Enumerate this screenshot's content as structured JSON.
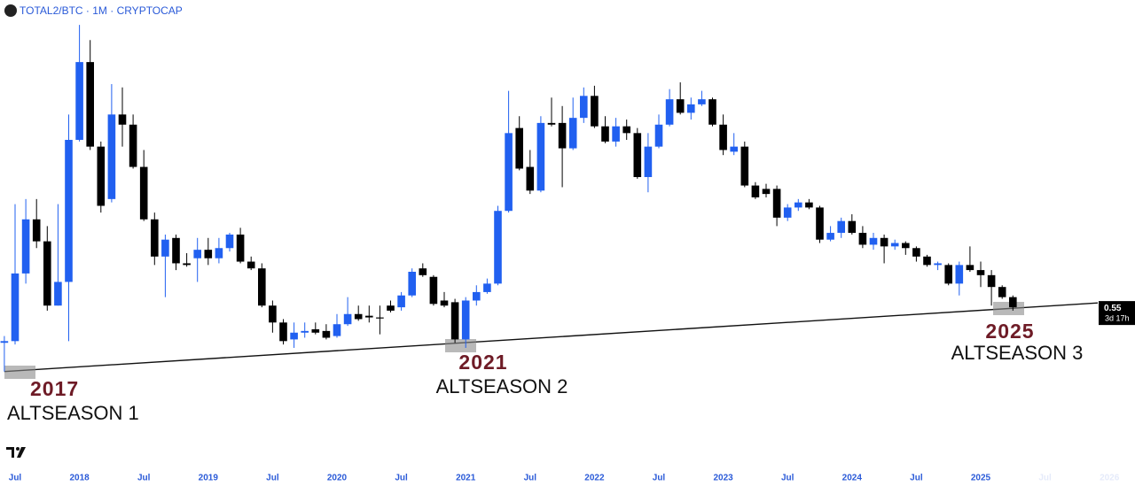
{
  "chart_data": {
    "type": "candlestick",
    "title": "TOTAL2/BTC · 1M · CRYPTOCAP",
    "up_color": "#2160f0",
    "down_color": "#000000",
    "x": [
      "2017-06",
      "2017-07",
      "2017-08",
      "2017-09",
      "2017-10",
      "2017-11",
      "2017-12",
      "2018-01",
      "2018-02",
      "2018-03",
      "2018-04",
      "2018-05",
      "2018-06",
      "2018-07",
      "2018-08",
      "2018-09",
      "2018-10",
      "2018-11",
      "2018-12",
      "2019-01",
      "2019-02",
      "2019-03",
      "2019-04",
      "2019-05",
      "2019-06",
      "2019-07",
      "2019-08",
      "2019-09",
      "2019-10",
      "2019-11",
      "2019-12",
      "2020-01",
      "2020-02",
      "2020-03",
      "2020-04",
      "2020-05",
      "2020-06",
      "2020-07",
      "2020-08",
      "2020-09",
      "2020-10",
      "2020-11",
      "2020-12",
      "2021-01",
      "2021-02",
      "2021-03",
      "2021-04",
      "2021-05",
      "2021-06",
      "2021-07",
      "2021-08",
      "2021-09",
      "2021-10",
      "2021-11",
      "2021-12",
      "2022-01",
      "2022-02",
      "2022-03",
      "2022-04",
      "2022-05",
      "2022-06",
      "2022-07",
      "2022-08",
      "2022-09",
      "2022-10",
      "2022-11",
      "2022-12",
      "2023-01",
      "2023-02",
      "2023-03",
      "2023-04",
      "2023-05",
      "2023-06",
      "2023-07",
      "2023-08",
      "2023-09",
      "2023-10",
      "2023-11",
      "2023-12",
      "2024-01",
      "2024-02",
      "2024-03",
      "2024-04",
      "2024-05",
      "2024-06",
      "2024-07",
      "2024-08",
      "2024-09",
      "2024-10",
      "2024-11",
      "2024-12",
      "2025-01",
      "2025-02",
      "2025-03",
      "2025-04"
    ],
    "open": [
      0.34,
      0.35,
      0.75,
      1.07,
      0.94,
      0.56,
      0.7,
      1.54,
      2.0,
      1.5,
      1.19,
      1.69,
      1.63,
      1.38,
      1.07,
      0.85,
      0.96,
      0.81,
      0.84,
      0.89,
      0.84,
      0.9,
      0.98,
      0.82,
      0.78,
      0.56,
      0.46,
      0.36,
      0.4,
      0.42,
      0.41,
      0.38,
      0.45,
      0.51,
      0.5,
      0.49,
      0.56,
      0.55,
      0.62,
      0.78,
      0.73,
      0.59,
      0.58,
      0.36,
      0.59,
      0.64,
      0.69,
      1.12,
      1.61,
      1.38,
      1.24,
      1.64,
      1.64,
      1.49,
      1.67,
      1.8,
      1.62,
      1.53,
      1.62,
      1.58,
      1.32,
      1.5,
      1.63,
      1.78,
      1.7,
      1.75,
      1.78,
      1.63,
      1.47,
      1.5,
      1.27,
      1.25,
      1.25,
      1.08,
      1.14,
      1.17,
      1.14,
      0.95,
      0.99,
      1.06,
      0.99,
      0.92,
      0.96,
      0.91,
      0.93,
      0.9,
      0.85,
      0.8,
      0.8,
      0.69,
      0.8,
      0.77,
      0.74,
      0.67,
      0.61
    ],
    "high": [
      0.38,
      1.16,
      1.19,
      1.19,
      1.03,
      1.16,
      1.69,
      2.22,
      2.13,
      1.53,
      1.87,
      1.85,
      1.69,
      1.48,
      1.11,
      0.98,
      0.98,
      0.87,
      0.96,
      0.96,
      0.96,
      0.99,
      1.02,
      0.85,
      0.81,
      0.59,
      0.48,
      0.46,
      0.46,
      0.46,
      0.45,
      0.51,
      0.61,
      0.56,
      0.56,
      0.56,
      0.59,
      0.64,
      0.78,
      0.81,
      0.74,
      0.64,
      0.6,
      0.61,
      0.68,
      0.72,
      1.15,
      1.83,
      1.68,
      1.48,
      1.68,
      1.79,
      1.74,
      1.79,
      1.85,
      1.86,
      1.68,
      1.67,
      1.66,
      1.61,
      1.58,
      1.69,
      1.84,
      1.88,
      1.79,
      1.83,
      1.79,
      1.69,
      1.58,
      1.53,
      1.29,
      1.28,
      1.27,
      1.16,
      1.19,
      1.19,
      1.15,
      1.03,
      1.08,
      1.1,
      1.03,
      0.99,
      0.98,
      0.95,
      0.94,
      0.91,
      0.86,
      0.82,
      0.81,
      0.82,
      0.91,
      0.82,
      0.77,
      0.68,
      0.62
    ],
    "low": [
      0.17,
      0.33,
      0.69,
      0.9,
      0.53,
      0.56,
      0.35,
      1.53,
      1.48,
      1.11,
      1.17,
      1.5,
      1.37,
      1.06,
      0.8,
      0.61,
      0.77,
      0.79,
      0.7,
      0.8,
      0.81,
      0.88,
      0.81,
      0.77,
      0.55,
      0.4,
      0.33,
      0.31,
      0.37,
      0.39,
      0.36,
      0.37,
      0.44,
      0.47,
      0.46,
      0.39,
      0.52,
      0.53,
      0.61,
      0.73,
      0.56,
      0.55,
      0.34,
      0.31,
      0.56,
      0.63,
      0.68,
      1.11,
      1.36,
      1.22,
      1.23,
      1.62,
      1.26,
      1.48,
      1.64,
      1.61,
      1.52,
      1.5,
      1.54,
      1.31,
      1.23,
      1.49,
      1.62,
      1.69,
      1.66,
      1.74,
      1.62,
      1.45,
      1.45,
      1.26,
      1.19,
      1.2,
      1.03,
      1.06,
      1.12,
      1.13,
      0.93,
      0.94,
      0.96,
      0.98,
      0.9,
      0.89,
      0.81,
      0.89,
      0.86,
      0.82,
      0.79,
      0.77,
      0.68,
      0.62,
      0.76,
      0.67,
      0.56,
      0.6,
      0.53
    ],
    "close": [
      0.35,
      0.75,
      1.07,
      0.94,
      0.56,
      0.7,
      1.54,
      2.0,
      1.5,
      1.15,
      1.69,
      1.63,
      1.38,
      1.07,
      0.85,
      0.95,
      0.81,
      0.8,
      0.89,
      0.84,
      0.9,
      0.98,
      0.82,
      0.78,
      0.56,
      0.46,
      0.35,
      0.4,
      0.41,
      0.4,
      0.37,
      0.45,
      0.51,
      0.48,
      0.49,
      0.49,
      0.53,
      0.62,
      0.76,
      0.74,
      0.57,
      0.56,
      0.36,
      0.59,
      0.64,
      0.69,
      1.12,
      1.58,
      1.37,
      1.24,
      1.64,
      1.63,
      1.49,
      1.67,
      1.8,
      1.62,
      1.53,
      1.62,
      1.58,
      1.32,
      1.5,
      1.63,
      1.78,
      1.7,
      1.75,
      1.78,
      1.63,
      1.48,
      1.5,
      1.27,
      1.2,
      1.22,
      1.08,
      1.14,
      1.17,
      1.14,
      0.95,
      0.99,
      1.06,
      0.99,
      0.92,
      0.96,
      0.91,
      0.93,
      0.9,
      0.85,
      0.8,
      0.81,
      0.69,
      0.8,
      0.77,
      0.74,
      0.67,
      0.61,
      0.55
    ],
    "xlim": [
      "2017-05",
      "2026-03"
    ],
    "ylim": [
      -0.3,
      2.3
    ],
    "xticks": [
      {
        "value": "2017-07",
        "label": "Jul"
      },
      {
        "value": "2018-01",
        "label": "2018"
      },
      {
        "value": "2018-07",
        "label": "Jul"
      },
      {
        "value": "2019-01",
        "label": "2019"
      },
      {
        "value": "2019-07",
        "label": "Jul"
      },
      {
        "value": "2020-01",
        "label": "2020"
      },
      {
        "value": "2020-07",
        "label": "Jul"
      },
      {
        "value": "2021-01",
        "label": "2021"
      },
      {
        "value": "2021-07",
        "label": "Jul"
      },
      {
        "value": "2022-01",
        "label": "2022"
      },
      {
        "value": "2022-07",
        "label": "Jul"
      },
      {
        "value": "2023-01",
        "label": "2023"
      },
      {
        "value": "2023-07",
        "label": "Jul"
      },
      {
        "value": "2024-01",
        "label": "2024"
      },
      {
        "value": "2024-07",
        "label": "Jul"
      },
      {
        "value": "2025-01",
        "label": "2025"
      },
      {
        "value": "2025-07",
        "label": "Jul"
      },
      {
        "value": "2026-01",
        "label": "2026"
      }
    ],
    "trendline": {
      "x": [
        "2017-06",
        "2026-01"
      ],
      "y": [
        0.17,
        0.58
      ]
    },
    "last_price": 0.55,
    "countdown": "3d 17h",
    "annotations": [
      {
        "year": "2017",
        "label": "ALTSEASON 1"
      },
      {
        "year": "2021",
        "label": "ALTSEASON 2"
      },
      {
        "year": "2025",
        "label": "ALTSEASON 3"
      }
    ]
  }
}
